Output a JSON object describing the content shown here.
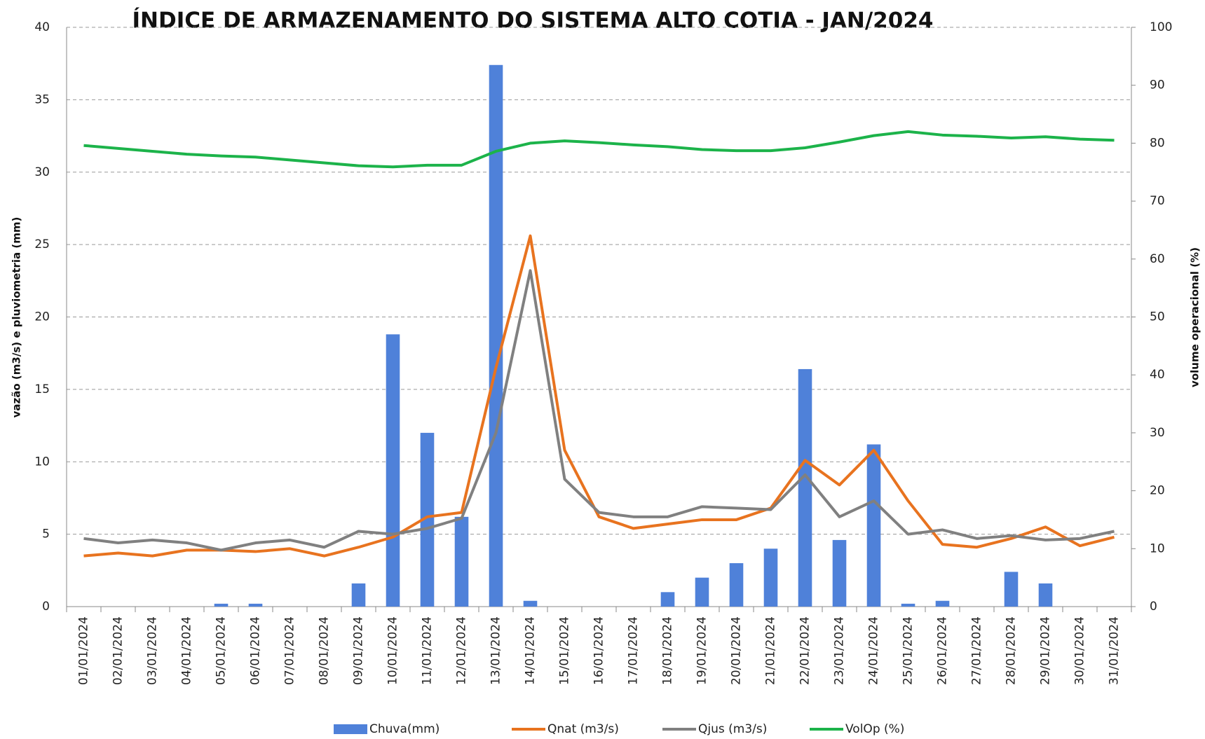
{
  "chart_data": {
    "type": "combo",
    "title": "ÍNDICE DE ARMAZENAMENTO  DO SISTEMA ALTO COTIA - JAN/2024",
    "y_label": "vazão  (m3/s) e pluviometria (mm)",
    "y2_label": "volume operacional  (%)",
    "categories": [
      "01/01/2024",
      "02/01/2024",
      "03/01/2024",
      "04/01/2024",
      "05/01/2024",
      "06/01/2024",
      "07/01/2024",
      "08/01/2024",
      "09/01/2024",
      "10/01/2024",
      "11/01/2024",
      "12/01/2024",
      "13/01/2024",
      "14/01/2024",
      "15/01/2024",
      "16/01/2024",
      "17/01/2024",
      "18/01/2024",
      "19/01/2024",
      "20/01/2024",
      "21/01/2024",
      "22/01/2024",
      "23/01/2024",
      "24/01/2024",
      "25/01/2024",
      "26/01/2024",
      "27/01/2024",
      "28/01/2024",
      "29/01/2024",
      "30/01/2024",
      "31/01/2024"
    ],
    "series": [
      {
        "name": "Chuva(mm)",
        "type": "bar",
        "color": "#4f81d9",
        "values": [
          0,
          0,
          0,
          0,
          0.2,
          0.2,
          0,
          0,
          1.6,
          18.8,
          12,
          6.2,
          37.4,
          0.4,
          0,
          0,
          0,
          1,
          2,
          3,
          4,
          16.4,
          4.6,
          11.2,
          0.2,
          0.4,
          0,
          2.4,
          1.6,
          0,
          0
        ]
      },
      {
        "name": "Qnat (m3/s)",
        "type": "line",
        "color": "#e8731f",
        "values": [
          3.5,
          3.7,
          3.5,
          3.9,
          3.9,
          3.8,
          4.0,
          3.5,
          4.1,
          4.8,
          6.2,
          6.5,
          16.5,
          25.6,
          10.8,
          6.2,
          5.4,
          5.7,
          6.0,
          6.0,
          6.8,
          10.1,
          8.4,
          10.8,
          7.3,
          4.3,
          4.1,
          4.7,
          5.5,
          4.2,
          4.8
        ]
      },
      {
        "name": "Qjus (m3/s)",
        "type": "line",
        "color": "#808080",
        "values": [
          4.7,
          4.4,
          4.6,
          4.4,
          3.9,
          4.4,
          4.6,
          4.1,
          5.2,
          5.0,
          5.4,
          6.1,
          12.0,
          23.2,
          8.8,
          6.5,
          6.2,
          6.2,
          6.9,
          6.8,
          6.7,
          9.1,
          6.2,
          7.3,
          5.0,
          5.3,
          4.7,
          4.9,
          4.6,
          4.7,
          5.2
        ]
      },
      {
        "name": "VolOp (%)",
        "type": "line",
        "axis": "y2",
        "color": "#1cb34a",
        "values": [
          79.6,
          79.1,
          78.6,
          78.1,
          77.8,
          77.6,
          77.1,
          76.6,
          76.1,
          75.9,
          76.2,
          76.2,
          78.6,
          80.0,
          80.4,
          80.1,
          79.7,
          79.4,
          78.9,
          78.7,
          78.7,
          79.2,
          80.2,
          81.3,
          82.0,
          81.4,
          81.2,
          80.9,
          81.1,
          80.7,
          80.5
        ]
      }
    ],
    "ylim": [
      0,
      40
    ],
    "yticks": [
      0,
      5,
      10,
      15,
      20,
      25,
      30,
      35,
      40
    ],
    "y2lim": [
      0,
      100
    ],
    "y2ticks": [
      0,
      10,
      20,
      30,
      40,
      50,
      60,
      70,
      80,
      90,
      100
    ],
    "grid": true,
    "legend": "bottom"
  }
}
